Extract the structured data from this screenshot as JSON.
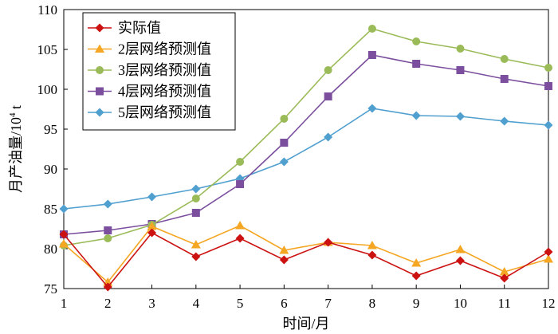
{
  "chart_data": {
    "type": "line",
    "xlabel": "时间/月",
    "ylabel_main": "月产油量/10",
    "ylabel_sup": "4",
    "ylabel_unit": " t",
    "x": [
      1,
      2,
      3,
      4,
      5,
      6,
      7,
      8,
      9,
      10,
      11,
      12
    ],
    "ylim": [
      75,
      110
    ],
    "yticks": [
      75,
      80,
      85,
      90,
      95,
      100,
      105,
      110
    ],
    "grid": false,
    "legend_position": "top-left",
    "series": [
      {
        "name": "实际值",
        "color": "#cc1111",
        "marker": "diamond",
        "values": [
          81.8,
          75.2,
          82.0,
          79.0,
          81.3,
          78.6,
          80.8,
          79.2,
          76.6,
          78.5,
          76.3,
          79.6
        ]
      },
      {
        "name": "2层网络预测值",
        "color": "#f5a623",
        "marker": "triangle",
        "values": [
          80.6,
          75.8,
          82.8,
          80.5,
          82.9,
          79.8,
          80.8,
          80.4,
          78.2,
          79.9,
          77.1,
          78.7
        ]
      },
      {
        "name": "3层网络预测值",
        "color": "#9bbb59",
        "marker": "circle",
        "values": [
          80.4,
          81.3,
          83.0,
          86.3,
          90.9,
          96.3,
          102.4,
          107.6,
          106.0,
          105.1,
          103.8,
          102.7
        ]
      },
      {
        "name": "4层网络预测值",
        "color": "#7b4f9e",
        "marker": "square",
        "values": [
          81.8,
          82.3,
          83.1,
          84.5,
          88.1,
          93.3,
          99.1,
          104.3,
          103.2,
          102.4,
          101.3,
          100.4
        ]
      },
      {
        "name": "5层网络预测值",
        "color": "#4f9fcf",
        "marker": "diamond",
        "values": [
          85.0,
          85.6,
          86.5,
          87.5,
          88.8,
          90.9,
          94.0,
          97.6,
          96.7,
          96.6,
          96.0,
          95.5
        ]
      }
    ]
  }
}
